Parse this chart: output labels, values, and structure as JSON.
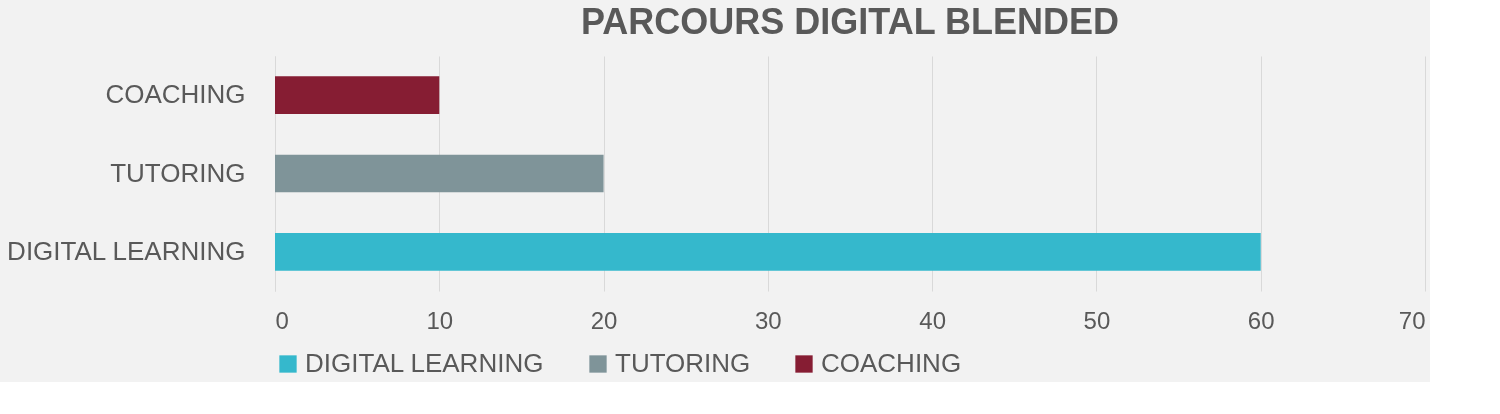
{
  "chart_data": {
    "type": "bar",
    "orientation": "horizontal",
    "title": "PARCOURS DIGITAL BLENDED",
    "categories": [
      "COACHING",
      "TUTORING",
      "DIGITAL LEARNING"
    ],
    "series": [
      {
        "name": "DIGITAL LEARNING",
        "color": "#35b8cc",
        "values": [
          null,
          null,
          60
        ]
      },
      {
        "name": "TUTORING",
        "color": "#7f9499",
        "values": [
          null,
          20,
          null
        ]
      },
      {
        "name": "COACHING",
        "color": "#861d33",
        "values": [
          10,
          null,
          null
        ]
      }
    ],
    "xlim": [
      0,
      70
    ],
    "xticks": [
      0,
      10,
      20,
      30,
      40,
      50,
      60,
      70
    ],
    "grid": "x",
    "legend": "bottom"
  }
}
